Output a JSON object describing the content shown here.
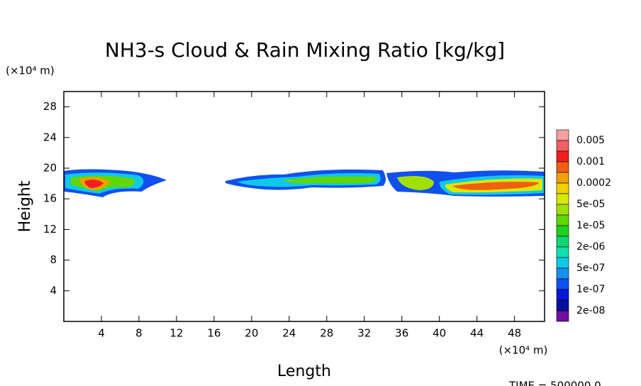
{
  "chart_data": {
    "type": "contour",
    "title": "NH3-s Cloud & Rain Mixing Ratio [kg/kg]",
    "y_unit": "(×10⁴ m)",
    "x_unit": "(×10⁴ m)",
    "ylabel": "Height",
    "xlabel": "Length",
    "footer": "TIME = 500000.0",
    "xlim": [
      0,
      51.2
    ],
    "ylim": [
      0,
      30
    ],
    "xticks": [
      4,
      8,
      12,
      16,
      20,
      24,
      28,
      32,
      36,
      40,
      44,
      48
    ],
    "yticks": [
      4,
      8,
      12,
      16,
      20,
      24,
      28
    ],
    "colorbar": {
      "colors": [
        "#f4a0a0",
        "#f06060",
        "#f02020",
        "#f06010",
        "#f0a000",
        "#f0d000",
        "#d8e800",
        "#a0e000",
        "#60d800",
        "#20d020",
        "#10d870",
        "#10e0b0",
        "#10c8e8",
        "#1890f0",
        "#1050f0",
        "#0818d8",
        "#0810a0",
        "#7010a0"
      ],
      "levels": [
        {
          "value": 0.005,
          "label": "0.005"
        },
        {
          "value": 0.001,
          "label": "0.001"
        },
        {
          "value": 0.0002,
          "label": "0.0002"
        },
        {
          "value": 5e-05,
          "label": "5e-05"
        },
        {
          "value": 1e-05,
          "label": "1e-05"
        },
        {
          "value": 2e-06,
          "label": "2e-06"
        },
        {
          "value": 5e-07,
          "label": "5e-07"
        },
        {
          "value": 1e-07,
          "label": "1e-07"
        },
        {
          "value": 2e-08,
          "label": "2e-08"
        }
      ]
    }
  }
}
